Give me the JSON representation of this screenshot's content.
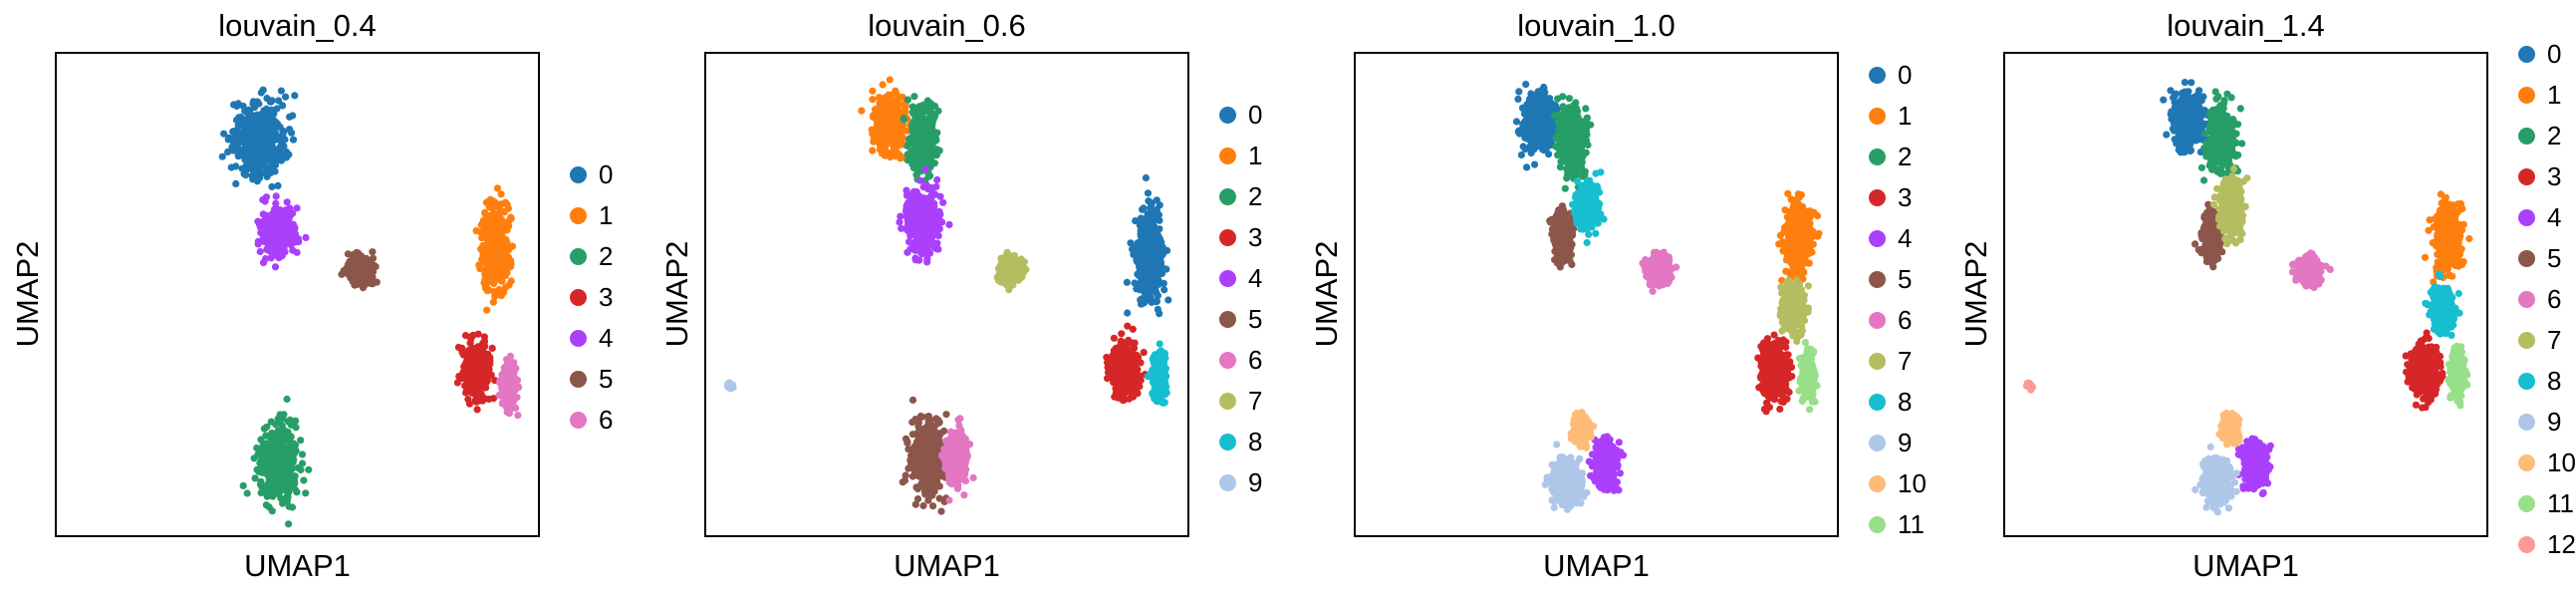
{
  "colors": [
    "#1f77b4",
    "#ff7f0e",
    "#279e68",
    "#d62728",
    "#aa40fc",
    "#8c564b",
    "#e377c2",
    "#b5bd61",
    "#17becf",
    "#aec7e8",
    "#ffbb78",
    "#98df8a",
    "#ff9896"
  ],
  "chart_data": [
    {
      "type": "scatter",
      "title": "louvain_0.4",
      "xlabel": "UMAP1",
      "ylabel": "UMAP2",
      "grid": false,
      "axis_ticks": false,
      "legend": {
        "placement": "right",
        "entries": [
          "0",
          "1",
          "2",
          "3",
          "4",
          "5",
          "6"
        ]
      },
      "clusters": [
        {
          "name": "0",
          "color": "#1f77b4",
          "center": [
            0.42,
            0.82
          ],
          "spread": [
            0.05,
            0.07
          ]
        },
        {
          "name": "1",
          "color": "#ff7f0e",
          "center": [
            0.91,
            0.6
          ],
          "spread": [
            0.025,
            0.08
          ]
        },
        {
          "name": "2",
          "color": "#279e68",
          "center": [
            0.46,
            0.15
          ],
          "spread": [
            0.035,
            0.07
          ]
        },
        {
          "name": "3",
          "color": "#d62728",
          "center": [
            0.87,
            0.34
          ],
          "spread": [
            0.025,
            0.05
          ]
        },
        {
          "name": "4",
          "color": "#aa40fc",
          "center": [
            0.46,
            0.63
          ],
          "spread": [
            0.03,
            0.04
          ]
        },
        {
          "name": "5",
          "color": "#8c564b",
          "center": [
            0.63,
            0.55
          ],
          "spread": [
            0.02,
            0.025
          ]
        },
        {
          "name": "6",
          "color": "#e377c2",
          "center": [
            0.94,
            0.31
          ],
          "spread": [
            0.012,
            0.04
          ]
        }
      ]
    },
    {
      "type": "scatter",
      "title": "louvain_0.6",
      "xlabel": "UMAP1",
      "ylabel": "UMAP2",
      "grid": false,
      "axis_ticks": false,
      "legend": {
        "placement": "right",
        "entries": [
          "0",
          "1",
          "2",
          "3",
          "4",
          "5",
          "6",
          "7",
          "8",
          "9"
        ]
      },
      "clusters": [
        {
          "name": "0",
          "color": "#1f77b4",
          "center": [
            0.92,
            0.58
          ],
          "spread": [
            0.025,
            0.08
          ]
        },
        {
          "name": "1",
          "color": "#ff7f0e",
          "center": [
            0.38,
            0.85
          ],
          "spread": [
            0.03,
            0.05
          ]
        },
        {
          "name": "2",
          "color": "#279e68",
          "center": [
            0.45,
            0.82
          ],
          "spread": [
            0.025,
            0.06
          ]
        },
        {
          "name": "3",
          "color": "#d62728",
          "center": [
            0.87,
            0.34
          ],
          "spread": [
            0.025,
            0.05
          ]
        },
        {
          "name": "4",
          "color": "#aa40fc",
          "center": [
            0.45,
            0.65
          ],
          "spread": [
            0.03,
            0.06
          ]
        },
        {
          "name": "5",
          "color": "#8c564b",
          "center": [
            0.46,
            0.16
          ],
          "spread": [
            0.03,
            0.07
          ]
        },
        {
          "name": "6",
          "color": "#e377c2",
          "center": [
            0.52,
            0.16
          ],
          "spread": [
            0.02,
            0.05
          ]
        },
        {
          "name": "7",
          "color": "#b5bd61",
          "center": [
            0.63,
            0.55
          ],
          "spread": [
            0.02,
            0.025
          ]
        },
        {
          "name": "8",
          "color": "#17becf",
          "center": [
            0.94,
            0.33
          ],
          "spread": [
            0.012,
            0.04
          ]
        },
        {
          "name": "9",
          "color": "#aec7e8",
          "center": [
            0.05,
            0.31
          ],
          "spread": [
            0.006,
            0.006
          ]
        }
      ]
    },
    {
      "type": "scatter",
      "title": "louvain_1.0",
      "xlabel": "UMAP1",
      "ylabel": "UMAP2",
      "grid": false,
      "axis_ticks": false,
      "legend": {
        "placement": "right",
        "entries": [
          "0",
          "1",
          "2",
          "3",
          "4",
          "5",
          "6",
          "7",
          "8",
          "9",
          "10",
          "11"
        ]
      },
      "clusters": [
        {
          "name": "0",
          "color": "#1f77b4",
          "center": [
            0.38,
            0.86
          ],
          "spread": [
            0.03,
            0.05
          ]
        },
        {
          "name": "1",
          "color": "#ff7f0e",
          "center": [
            0.92,
            0.62
          ],
          "spread": [
            0.025,
            0.07
          ]
        },
        {
          "name": "2",
          "color": "#279e68",
          "center": [
            0.45,
            0.82
          ],
          "spread": [
            0.025,
            0.06
          ]
        },
        {
          "name": "3",
          "color": "#d62728",
          "center": [
            0.87,
            0.34
          ],
          "spread": [
            0.025,
            0.05
          ]
        },
        {
          "name": "4",
          "color": "#aa40fc",
          "center": [
            0.52,
            0.15
          ],
          "spread": [
            0.02,
            0.04
          ]
        },
        {
          "name": "5",
          "color": "#8c564b",
          "center": [
            0.43,
            0.62
          ],
          "spread": [
            0.015,
            0.04
          ]
        },
        {
          "name": "6",
          "color": "#e377c2",
          "center": [
            0.63,
            0.55
          ],
          "spread": [
            0.02,
            0.025
          ]
        },
        {
          "name": "7",
          "color": "#b5bd61",
          "center": [
            0.91,
            0.47
          ],
          "spread": [
            0.02,
            0.04
          ]
        },
        {
          "name": "8",
          "color": "#17becf",
          "center": [
            0.48,
            0.68
          ],
          "spread": [
            0.02,
            0.04
          ]
        },
        {
          "name": "9",
          "color": "#aec7e8",
          "center": [
            0.44,
            0.11
          ],
          "spread": [
            0.025,
            0.04
          ]
        },
        {
          "name": "10",
          "color": "#ffbb78",
          "center": [
            0.47,
            0.22
          ],
          "spread": [
            0.015,
            0.025
          ]
        },
        {
          "name": "11",
          "color": "#98df8a",
          "center": [
            0.94,
            0.33
          ],
          "spread": [
            0.012,
            0.04
          ]
        }
      ]
    },
    {
      "type": "scatter",
      "title": "louvain_1.4",
      "xlabel": "UMAP1",
      "ylabel": "UMAP2",
      "grid": false,
      "axis_ticks": false,
      "legend": {
        "placement": "right",
        "entries": [
          "0",
          "1",
          "2",
          "3",
          "4",
          "5",
          "6",
          "7",
          "8",
          "9",
          "10",
          "11",
          "12"
        ]
      },
      "clusters": [
        {
          "name": "0",
          "color": "#1f77b4",
          "center": [
            0.38,
            0.86
          ],
          "spread": [
            0.03,
            0.05
          ]
        },
        {
          "name": "1",
          "color": "#ff7f0e",
          "center": [
            0.92,
            0.62
          ],
          "spread": [
            0.025,
            0.06
          ]
        },
        {
          "name": "2",
          "color": "#279e68",
          "center": [
            0.45,
            0.82
          ],
          "spread": [
            0.025,
            0.06
          ]
        },
        {
          "name": "3",
          "color": "#d62728",
          "center": [
            0.87,
            0.34
          ],
          "spread": [
            0.025,
            0.05
          ]
        },
        {
          "name": "4",
          "color": "#aa40fc",
          "center": [
            0.52,
            0.15
          ],
          "spread": [
            0.02,
            0.04
          ]
        },
        {
          "name": "5",
          "color": "#8c564b",
          "center": [
            0.43,
            0.62
          ],
          "spread": [
            0.015,
            0.04
          ]
        },
        {
          "name": "6",
          "color": "#e377c2",
          "center": [
            0.63,
            0.55
          ],
          "spread": [
            0.02,
            0.025
          ]
        },
        {
          "name": "7",
          "color": "#b5bd61",
          "center": [
            0.47,
            0.68
          ],
          "spread": [
            0.02,
            0.05
          ]
        },
        {
          "name": "8",
          "color": "#17becf",
          "center": [
            0.91,
            0.47
          ],
          "spread": [
            0.02,
            0.04
          ]
        },
        {
          "name": "9",
          "color": "#aec7e8",
          "center": [
            0.44,
            0.11
          ],
          "spread": [
            0.025,
            0.04
          ]
        },
        {
          "name": "10",
          "color": "#ffbb78",
          "center": [
            0.47,
            0.22
          ],
          "spread": [
            0.015,
            0.025
          ]
        },
        {
          "name": "11",
          "color": "#98df8a",
          "center": [
            0.94,
            0.33
          ],
          "spread": [
            0.012,
            0.04
          ]
        },
        {
          "name": "12",
          "color": "#ff9896",
          "center": [
            0.05,
            0.31
          ],
          "spread": [
            0.006,
            0.006
          ]
        }
      ]
    }
  ]
}
